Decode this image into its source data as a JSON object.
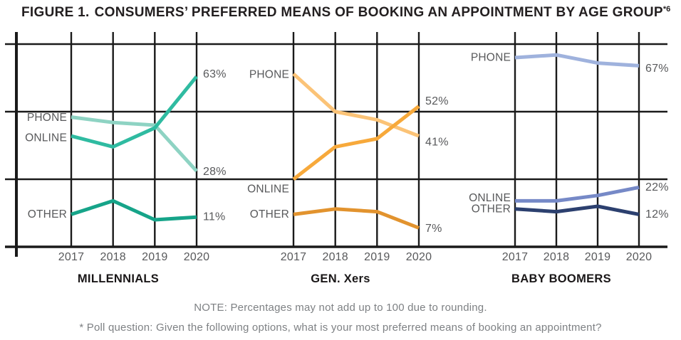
{
  "title": {
    "figure": "FIGURE 1.",
    "text": "CONSUMERS’ PREFERRED MEANS OF BOOKING AN APPOINTMENT BY AGE GROUP",
    "superscript": "*6"
  },
  "notes": {
    "note": "NOTE: Percentages may not add up to 100 due to rounding.",
    "footnote": "* Poll question: Given the following options, what is your most preferred means of booking an appointment?"
  },
  "colors": {
    "figure_red": "#E8262C",
    "title_black": "#231F20",
    "grid": "#1A1A1A",
    "label_gray": "#58595B",
    "group_label": "#1A1718",
    "note_gray": "#7E8184"
  },
  "chart_data": {
    "type": "line",
    "x": [
      "2017",
      "2018",
      "2019",
      "2020"
    ],
    "ylabel": "",
    "xlabel": "",
    "ylim": [
      0,
      75
    ],
    "gridlines_pct": [
      25,
      50,
      75
    ],
    "grid": true,
    "legend_position": "inline-labels",
    "panels": [
      {
        "group": "MILLENNIALS",
        "series": [
          {
            "name": "PHONE",
            "color": "#8ED3C3",
            "values": [
              48,
              46,
              45,
              28
            ],
            "end_label": "28%"
          },
          {
            "name": "ONLINE",
            "color": "#2FBBA1",
            "values": [
              41,
              37,
              44,
              63
            ],
            "end_label": "63%"
          },
          {
            "name": "OTHER",
            "color": "#16A489",
            "values": [
              12,
              17,
              10,
              11
            ],
            "end_label": "11%"
          }
        ]
      },
      {
        "group": "GEN. Xers",
        "series": [
          {
            "name": "PHONE",
            "color": "#FBC377",
            "values": [
              64,
              50,
              47,
              41
            ],
            "end_label": "41%"
          },
          {
            "name": "ONLINE",
            "color": "#F7A93B",
            "values": [
              25,
              37,
              40,
              52
            ],
            "end_label": "52%"
          },
          {
            "name": "OTHER",
            "color": "#E2932E",
            "values": [
              12,
              14,
              13,
              7
            ],
            "end_label": "7%"
          }
        ]
      },
      {
        "group": "BABY BOOMERS",
        "series": [
          {
            "name": "PHONE",
            "color": "#9FB2DD",
            "values": [
              70,
              71,
              68,
              67
            ],
            "end_label": "67%"
          },
          {
            "name": "ONLINE",
            "color": "#7689C7",
            "values": [
              17,
              17,
              19,
              22
            ],
            "end_label": "22%"
          },
          {
            "name": "OTHER",
            "color": "#2C406F",
            "values": [
              14,
              13,
              15,
              12
            ],
            "end_label": "12%"
          }
        ]
      }
    ]
  }
}
